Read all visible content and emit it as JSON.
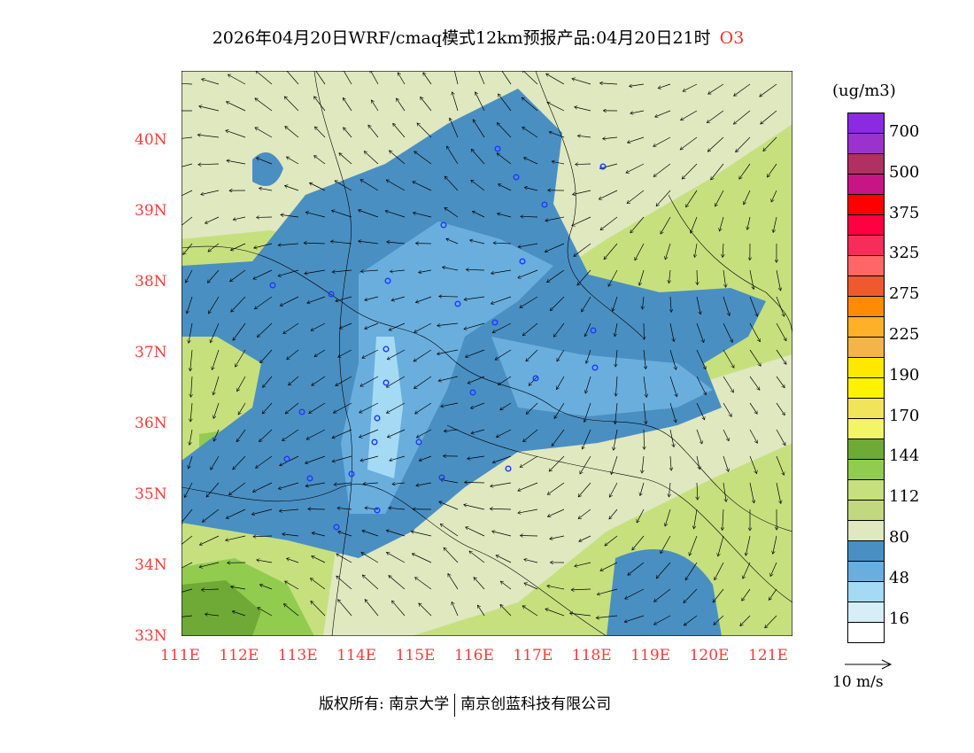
{
  "title": {
    "text": "2026年04月20日WRF/cmaq模式12km预报产品:04月20日21时",
    "species": "O3"
  },
  "axes": {
    "lat_labels": [
      "33N",
      "34N",
      "35N",
      "36N",
      "37N",
      "38N",
      "39N",
      "40N"
    ],
    "lon_labels": [
      "111E",
      "112E",
      "113E",
      "114E",
      "115E",
      "116E",
      "117E",
      "118E",
      "119E",
      "120E",
      "121E"
    ]
  },
  "legend": {
    "unit": "(ug/m3)",
    "colors": [
      "#8a2be2",
      "#9a32cd",
      "#b03060",
      "#c71585",
      "#ff0000",
      "#ff0040",
      "#f52d58",
      "#ff6666",
      "#ee5a2e",
      "#ff8c00",
      "#ffb02a",
      "#f5b44a",
      "#ffe800",
      "#fff200",
      "#f2e45a",
      "#f2f566",
      "#6eaa35",
      "#92cc4e",
      "#c6e07e",
      "#c2d87e",
      "#dfe8bf",
      "#4a8fc2",
      "#6aaede",
      "#a4daf4",
      "#d6eef8",
      "#ffffff"
    ],
    "labels": [
      "700",
      "500",
      "375",
      "325",
      "275",
      "225",
      "190",
      "170",
      "144",
      "112",
      "80",
      "48",
      "16"
    ],
    "wind_ref": "10 m/s"
  },
  "footer": {
    "copyright": "版权所有: 南京大学",
    "company": "南京创蓝科技有限公司"
  }
}
